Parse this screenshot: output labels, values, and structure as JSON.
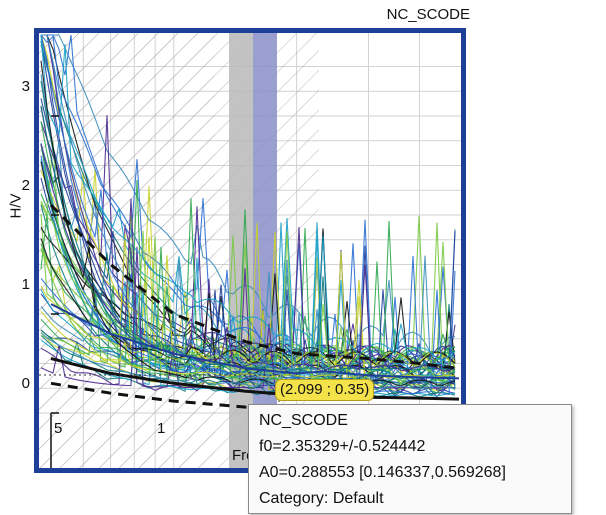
{
  "chart_data": {
    "type": "line",
    "title": "NC_SCODE",
    "xlabel": "Freq",
    "ylabel": "H/V",
    "x_tick_labels": [
      "5",
      "1"
    ],
    "y_ticks": [
      0,
      1,
      2,
      3
    ],
    "ylim": [
      0,
      3.7
    ],
    "grid": true,
    "cursor": {
      "x": 2.099,
      "y": 0.35,
      "label": "(2.099 ; 0.35)"
    },
    "series": [
      {
        "style": "curve-bundle",
        "x": [
          0.5,
          0.7,
          1.0,
          1.5,
          2.0,
          2.35,
          3.0,
          4.0,
          5.0
        ],
        "y": [
          1.1,
          0.8,
          0.6,
          0.45,
          0.4,
          0.42,
          0.38,
          0.36,
          0.35
        ]
      },
      {
        "style": "average-black",
        "x": [
          0.5,
          0.7,
          1.0,
          1.5,
          2.0,
          2.35,
          3.0,
          4.0,
          5.0
        ],
        "y": [
          0.55,
          0.4,
          0.3,
          0.22,
          0.18,
          0.17,
          0.16,
          0.15,
          0.14
        ]
      },
      {
        "style": "dashed-black",
        "x": [
          0.5,
          0.7,
          1.0,
          1.5,
          2.0,
          2.35,
          3.0,
          4.0,
          5.0
        ],
        "y": [
          2.1,
          1.5,
          1.0,
          0.72,
          0.6,
          0.58,
          0.55,
          0.5,
          0.45
        ]
      },
      {
        "style": "dashed-black",
        "x": [
          0.5,
          0.7,
          1.0,
          1.5,
          2.0,
          2.35,
          3.0,
          4.0,
          5.0
        ],
        "y": [
          0.3,
          0.2,
          0.12,
          0.06,
          0.04,
          0.04,
          0.05,
          0.05,
          0.05
        ]
      }
    ],
    "f0_band": [
      2.0,
      2.6
    ]
  },
  "tooltip": {
    "name": "NC_SCODE",
    "f0": "f0=2.35329+/-0.524442",
    "a0": "A0=0.288553 [0.146337,0.569268]",
    "category": "Category: Default"
  },
  "colors": {
    "frame": "#1d3f98",
    "band_gray": "#b9b9b9",
    "band_blue": "#8a8fc9",
    "hatch": "#aaaaaa",
    "readout_bg": "#f4e24a"
  }
}
